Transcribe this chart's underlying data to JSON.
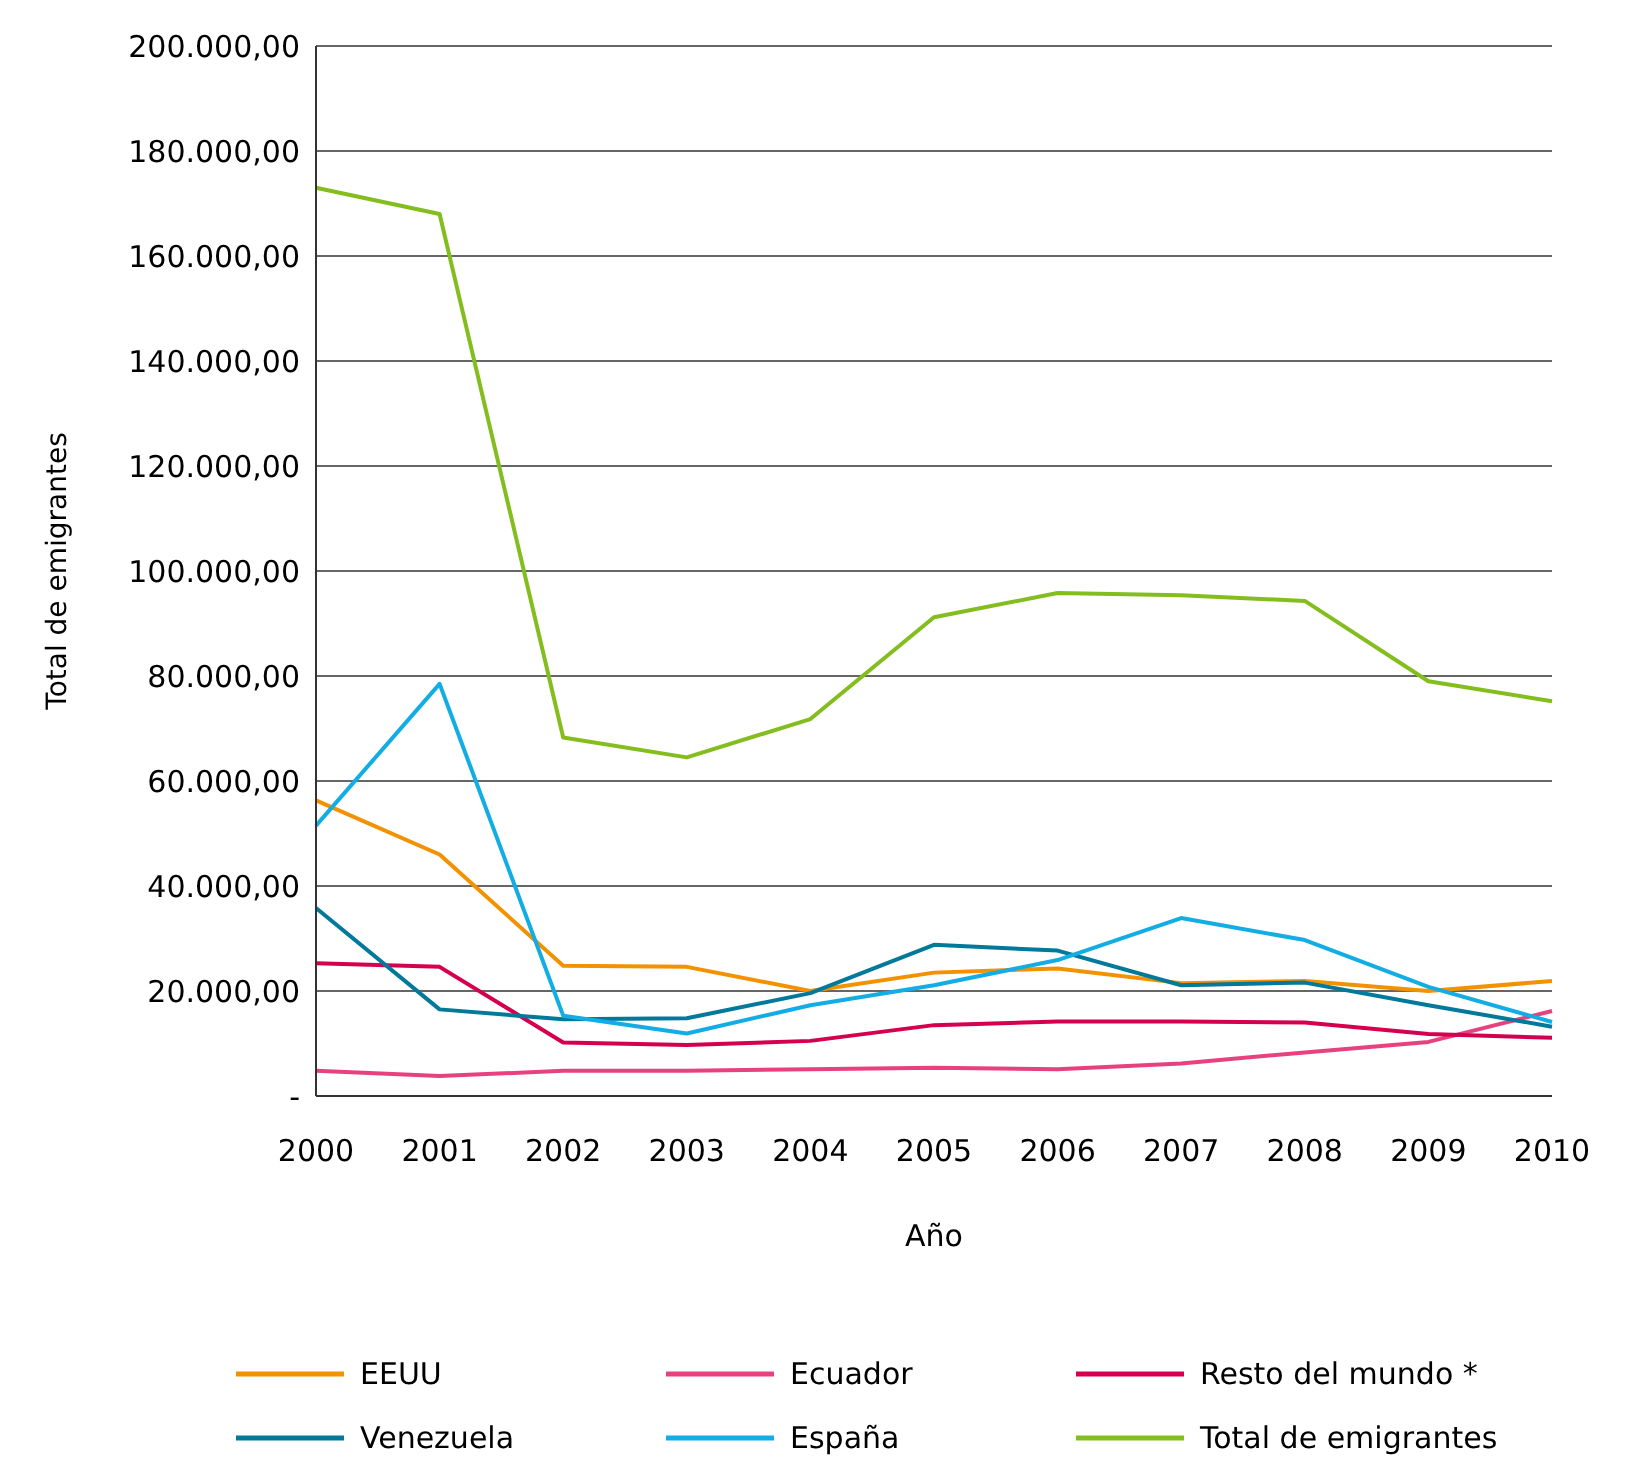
{
  "chart_data": {
    "type": "line",
    "xlabel": "Año",
    "ylabel": "Total de emigrantes",
    "categories": [
      "2000",
      "2001",
      "2002",
      "2003",
      "2004",
      "2005",
      "2006",
      "2007",
      "2008",
      "2009",
      "2010"
    ],
    "series": [
      {
        "name": "EEUU",
        "color": "#f39200",
        "values": [
          56300,
          46000,
          24800,
          24600,
          20000,
          23500,
          24300,
          21500,
          21900,
          20000,
          21900
        ]
      },
      {
        "name": "Ecuador",
        "color": "#e8417f",
        "values": [
          4800,
          3800,
          4800,
          4800,
          5100,
          5400,
          5100,
          6200,
          8300,
          10300,
          16200
        ]
      },
      {
        "name": "Resto del mundo *",
        "color": "#d4004f",
        "values": [
          25300,
          24600,
          10200,
          9700,
          10500,
          13500,
          14200,
          14200,
          14000,
          11800,
          11100
        ]
      },
      {
        "name": "Venezuela",
        "color": "#00799a",
        "values": [
          35800,
          16500,
          14600,
          14800,
          19600,
          28800,
          27700,
          21100,
          21600,
          17300,
          13200
        ]
      },
      {
        "name": "España",
        "color": "#11ade4",
        "values": [
          51500,
          78500,
          15300,
          11900,
          17300,
          21100,
          25900,
          33900,
          29700,
          20800,
          14100
        ]
      },
      {
        "name": "Total de emigrantes",
        "color": "#84bd1e",
        "values": [
          173000,
          168000,
          68300,
          64500,
          71800,
          91200,
          95800,
          95400,
          94300,
          79000,
          75200
        ]
      }
    ],
    "ylim": [
      0,
      200000
    ],
    "yticks": [
      {
        "value": 0,
        "label": "-"
      },
      {
        "value": 20000,
        "label": "20.000,00"
      },
      {
        "value": 40000,
        "label": "40.000,00"
      },
      {
        "value": 60000,
        "label": "60.000,00"
      },
      {
        "value": 80000,
        "label": "80.000,00"
      },
      {
        "value": 100000,
        "label": "100.000,00"
      },
      {
        "value": 120000,
        "label": "120.000,00"
      },
      {
        "value": 140000,
        "label": "140.000,00"
      },
      {
        "value": 160000,
        "label": "160.000,00"
      },
      {
        "value": 180000,
        "label": "180.000,00"
      },
      {
        "value": 200000,
        "label": "200.000,00"
      }
    ],
    "grid": "y",
    "legend": "bottom",
    "marker": "none",
    "line_style": "solid"
  }
}
